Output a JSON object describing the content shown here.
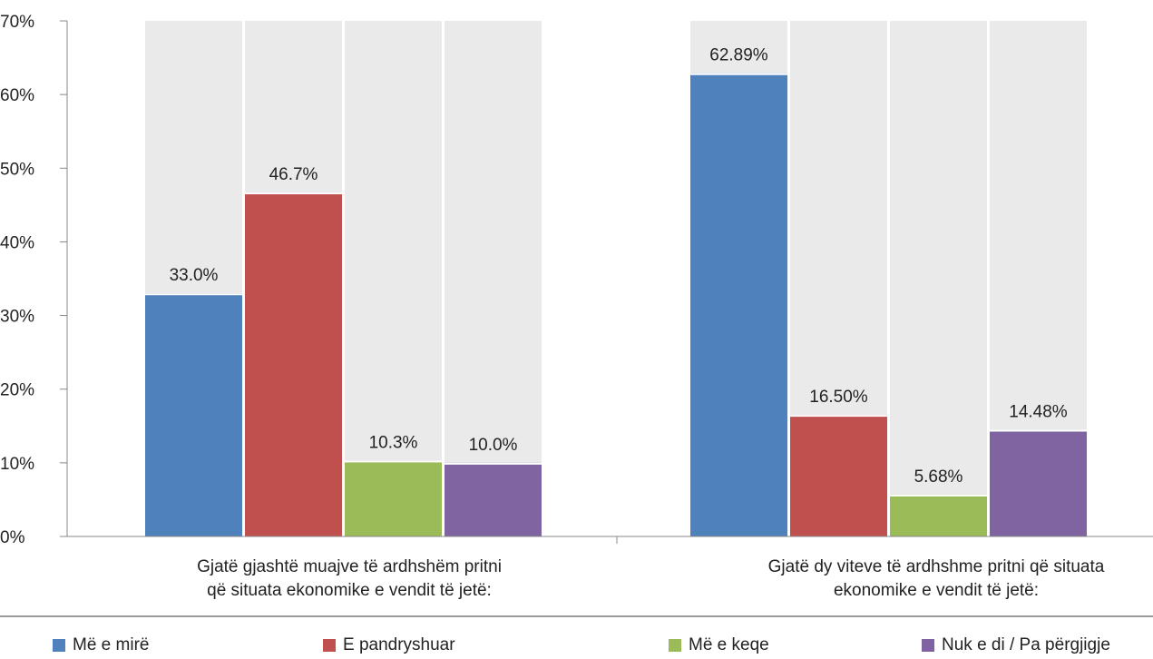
{
  "chart_data": {
    "type": "bar",
    "ylim": [
      0,
      70
    ],
    "yticks": [
      "0%",
      "10%",
      "20%",
      "30%",
      "40%",
      "50%",
      "60%",
      "70%"
    ],
    "groups": [
      {
        "label_lines": [
          "Gjatë gjashtë muajve të ardhshëm pritni",
          "që situata ekonomike e vendit të jetë:"
        ],
        "values": [
          33.0,
          46.7,
          10.3,
          10.0
        ],
        "value_labels": [
          "33.0%",
          "46.7%",
          "10.3%",
          "10.0%"
        ]
      },
      {
        "label_lines": [
          "Gjatë dy viteve të ardhshme pritni që situata",
          "ekonomike e vendit të jetë:"
        ],
        "values": [
          62.89,
          16.5,
          5.68,
          14.48
        ],
        "value_labels": [
          "62.89%",
          "16.50%",
          "5.68%",
          "14.48%"
        ]
      }
    ],
    "series": [
      {
        "name": "Më e mirë",
        "color": "#4F81BD"
      },
      {
        "name": "E pandryshuar",
        "color": "#C0504D"
      },
      {
        "name": "Më e keqe",
        "color": "#9BBB59"
      },
      {
        "name": "Nuk e di / Pa përgjigje",
        "color": "#8064A2"
      }
    ],
    "background_bar_color": "#EAEAEA",
    "legend_position": "bottom"
  }
}
